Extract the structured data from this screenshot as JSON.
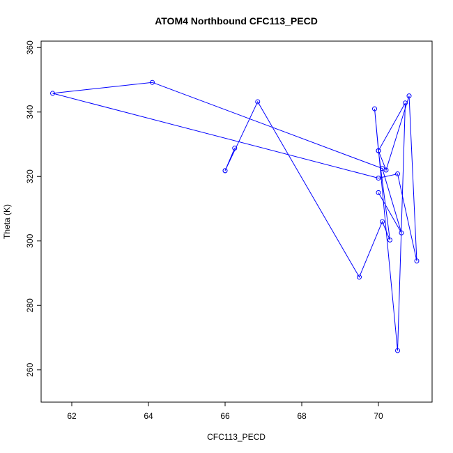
{
  "chart_data": {
    "type": "line",
    "title": "ATOM4 Northbound CFC113_PECD",
    "xlabel": "CFC113_PECD",
    "ylabel": "Theta (K)",
    "xlim": [
      61.2,
      71.4
    ],
    "ylim": [
      250,
      362
    ],
    "xticks": [
      62,
      64,
      66,
      68,
      70
    ],
    "yticks": [
      260,
      280,
      300,
      320,
      340,
      360
    ],
    "grid": false,
    "series": [
      {
        "color": "#0000ff",
        "marker": "open-circle",
        "points": [
          {
            "x": 66.0,
            "y": 321.8
          },
          {
            "x": 66.25,
            "y": 328.8
          },
          {
            "x": 66.0,
            "y": 321.8
          },
          {
            "x": 66.85,
            "y": 343.2
          },
          {
            "x": 69.5,
            "y": 288.8
          },
          {
            "x": 70.1,
            "y": 306.0
          },
          {
            "x": 70.3,
            "y": 300.3
          },
          {
            "x": 70.0,
            "y": 328.0
          },
          {
            "x": 69.9,
            "y": 341.0
          },
          {
            "x": 70.5,
            "y": 266.0
          },
          {
            "x": 70.7,
            "y": 342.8
          },
          {
            "x": 70.0,
            "y": 328.0
          },
          {
            "x": 70.2,
            "y": 322.0
          },
          {
            "x": 70.8,
            "y": 345.0
          },
          {
            "x": 71.0,
            "y": 293.8
          },
          {
            "x": 70.5,
            "y": 320.8
          },
          {
            "x": 70.0,
            "y": 319.5
          },
          {
            "x": 61.5,
            "y": 345.8
          },
          {
            "x": 64.1,
            "y": 349.2
          },
          {
            "x": 70.1,
            "y": 322.5
          },
          {
            "x": 70.6,
            "y": 302.5
          },
          {
            "x": 70.0,
            "y": 315.0
          }
        ]
      }
    ]
  }
}
